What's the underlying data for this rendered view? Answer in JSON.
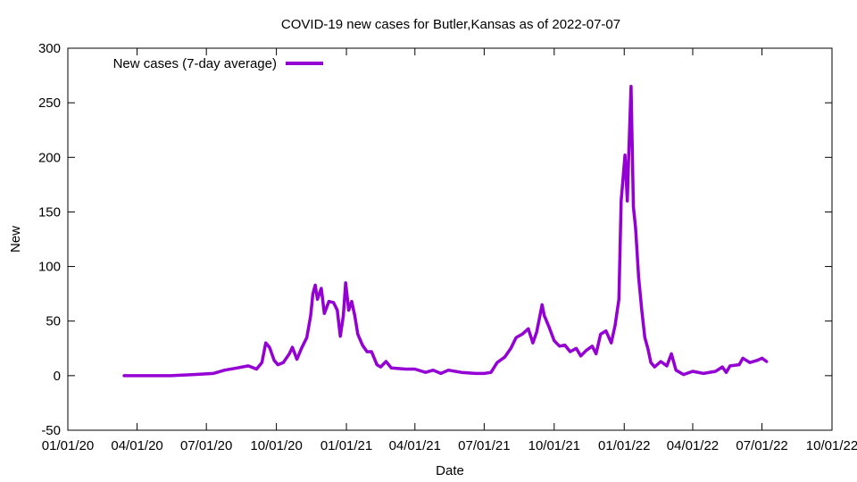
{
  "chart_data": {
    "type": "line",
    "title": "COVID-19 new cases for Butler,Kansas as of 2022-07-07",
    "xlabel": "Date",
    "ylabel": "New",
    "ylim": [
      -50,
      300
    ],
    "yticks": [
      -50,
      0,
      50,
      100,
      150,
      200,
      250,
      300
    ],
    "xlim": [
      "2020-01-01",
      "2022-10-01"
    ],
    "xticks": [
      {
        "date": "2020-01-01",
        "label": "01/01/20"
      },
      {
        "date": "2020-04-01",
        "label": "04/01/20"
      },
      {
        "date": "2020-07-01",
        "label": "07/01/20"
      },
      {
        "date": "2020-10-01",
        "label": "10/01/20"
      },
      {
        "date": "2021-01-01",
        "label": "01/01/21"
      },
      {
        "date": "2021-04-01",
        "label": "04/01/21"
      },
      {
        "date": "2021-07-01",
        "label": "07/01/21"
      },
      {
        "date": "2021-10-01",
        "label": "10/01/21"
      },
      {
        "date": "2022-01-01",
        "label": "01/01/22"
      },
      {
        "date": "2022-04-01",
        "label": "04/01/22"
      },
      {
        "date": "2022-07-01",
        "label": "07/01/22"
      },
      {
        "date": "2022-10-01",
        "label": "10/01/22"
      }
    ],
    "grid": false,
    "legend": "top-left",
    "series": [
      {
        "name": "New cases (7-day average)",
        "color": "#9400d3",
        "points": [
          [
            "2020-03-15",
            0
          ],
          [
            "2020-04-15",
            0
          ],
          [
            "2020-05-15",
            0
          ],
          [
            "2020-06-15",
            1
          ],
          [
            "2020-07-10",
            2
          ],
          [
            "2020-07-25",
            5
          ],
          [
            "2020-08-10",
            7
          ],
          [
            "2020-08-25",
            9
          ],
          [
            "2020-09-05",
            6
          ],
          [
            "2020-09-12",
            12
          ],
          [
            "2020-09-17",
            30
          ],
          [
            "2020-09-22",
            26
          ],
          [
            "2020-09-28",
            14
          ],
          [
            "2020-10-03",
            10
          ],
          [
            "2020-10-10",
            12
          ],
          [
            "2020-10-18",
            20
          ],
          [
            "2020-10-22",
            26
          ],
          [
            "2020-10-28",
            15
          ],
          [
            "2020-11-03",
            25
          ],
          [
            "2020-11-10",
            35
          ],
          [
            "2020-11-15",
            55
          ],
          [
            "2020-11-18",
            75
          ],
          [
            "2020-11-21",
            83
          ],
          [
            "2020-11-24",
            70
          ],
          [
            "2020-11-29",
            80
          ],
          [
            "2020-12-03",
            57
          ],
          [
            "2020-12-09",
            68
          ],
          [
            "2020-12-15",
            67
          ],
          [
            "2020-12-20",
            60
          ],
          [
            "2020-12-24",
            36
          ],
          [
            "2020-12-28",
            55
          ],
          [
            "2020-12-31",
            85
          ],
          [
            "2021-01-04",
            60
          ],
          [
            "2021-01-08",
            68
          ],
          [
            "2021-01-12",
            55
          ],
          [
            "2021-01-16",
            38
          ],
          [
            "2021-01-22",
            28
          ],
          [
            "2021-01-28",
            22
          ],
          [
            "2021-02-03",
            22
          ],
          [
            "2021-02-10",
            10
          ],
          [
            "2021-02-15",
            8
          ],
          [
            "2021-02-22",
            13
          ],
          [
            "2021-03-01",
            7
          ],
          [
            "2021-03-20",
            6
          ],
          [
            "2021-04-01",
            6
          ],
          [
            "2021-04-15",
            3
          ],
          [
            "2021-04-25",
            5
          ],
          [
            "2021-05-05",
            2
          ],
          [
            "2021-05-15",
            5
          ],
          [
            "2021-06-01",
            3
          ],
          [
            "2021-06-20",
            2
          ],
          [
            "2021-07-01",
            2
          ],
          [
            "2021-07-10",
            3
          ],
          [
            "2021-07-18",
            12
          ],
          [
            "2021-07-28",
            17
          ],
          [
            "2021-08-05",
            25
          ],
          [
            "2021-08-12",
            35
          ],
          [
            "2021-08-20",
            38
          ],
          [
            "2021-08-28",
            43
          ],
          [
            "2021-09-03",
            30
          ],
          [
            "2021-09-08",
            40
          ],
          [
            "2021-09-12",
            54
          ],
          [
            "2021-09-15",
            65
          ],
          [
            "2021-09-18",
            55
          ],
          [
            "2021-09-24",
            45
          ],
          [
            "2021-10-01",
            32
          ],
          [
            "2021-10-08",
            27
          ],
          [
            "2021-10-15",
            28
          ],
          [
            "2021-10-22",
            22
          ],
          [
            "2021-10-30",
            25
          ],
          [
            "2021-11-05",
            18
          ],
          [
            "2021-11-12",
            23
          ],
          [
            "2021-11-20",
            27
          ],
          [
            "2021-11-25",
            20
          ],
          [
            "2021-12-01",
            38
          ],
          [
            "2021-12-08",
            41
          ],
          [
            "2021-12-15",
            30
          ],
          [
            "2021-12-20",
            46
          ],
          [
            "2021-12-25",
            70
          ],
          [
            "2021-12-28",
            160
          ],
          [
            "2022-01-02",
            202
          ],
          [
            "2022-01-05",
            160
          ],
          [
            "2022-01-07",
            205
          ],
          [
            "2022-01-10",
            265
          ],
          [
            "2022-01-13",
            155
          ],
          [
            "2022-01-16",
            135
          ],
          [
            "2022-01-20",
            90
          ],
          [
            "2022-01-24",
            60
          ],
          [
            "2022-01-28",
            35
          ],
          [
            "2022-02-01",
            25
          ],
          [
            "2022-02-05",
            12
          ],
          [
            "2022-02-10",
            8
          ],
          [
            "2022-02-18",
            13
          ],
          [
            "2022-02-26",
            9
          ],
          [
            "2022-03-04",
            20
          ],
          [
            "2022-03-10",
            5
          ],
          [
            "2022-03-20",
            1
          ],
          [
            "2022-04-01",
            4
          ],
          [
            "2022-04-15",
            2
          ],
          [
            "2022-05-01",
            4
          ],
          [
            "2022-05-10",
            8
          ],
          [
            "2022-05-15",
            3
          ],
          [
            "2022-05-20",
            9
          ],
          [
            "2022-06-01",
            10
          ],
          [
            "2022-06-06",
            16
          ],
          [
            "2022-06-15",
            12
          ],
          [
            "2022-06-25",
            14
          ],
          [
            "2022-07-01",
            16
          ],
          [
            "2022-07-07",
            13
          ]
        ]
      }
    ]
  }
}
